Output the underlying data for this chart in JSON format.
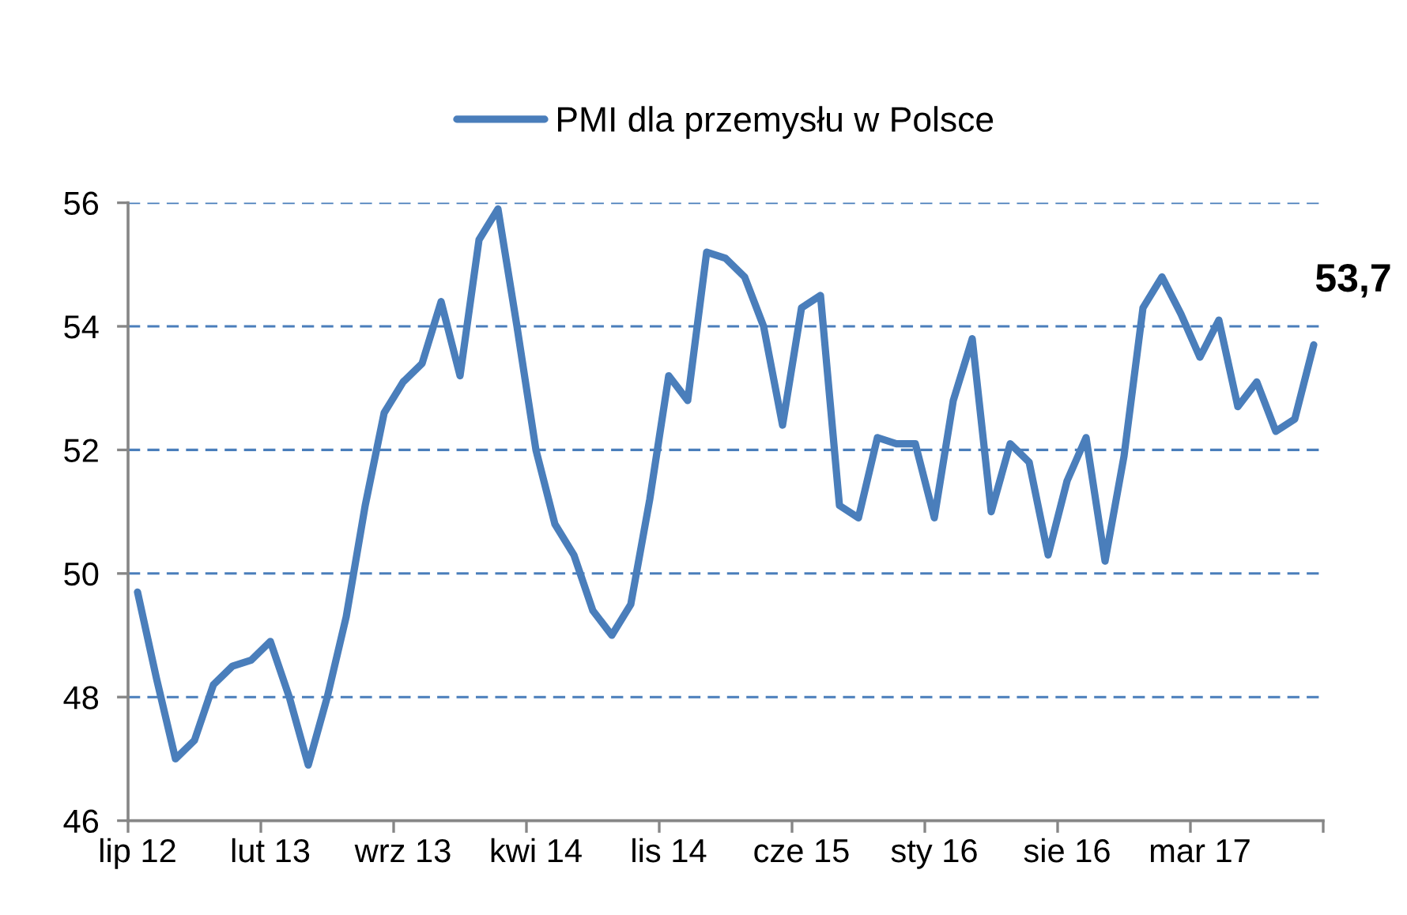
{
  "chart_data": {
    "type": "line",
    "categories": [
      "lip 12",
      null,
      null,
      null,
      null,
      null,
      null,
      "lut 13",
      null,
      null,
      null,
      null,
      null,
      null,
      "wrz 13",
      null,
      null,
      null,
      null,
      null,
      null,
      "kwi 14",
      null,
      null,
      null,
      null,
      null,
      null,
      "lis 14",
      null,
      null,
      null,
      null,
      null,
      null,
      "cze 15",
      null,
      null,
      null,
      null,
      null,
      null,
      "sty 16",
      null,
      null,
      null,
      null,
      null,
      null,
      "sie 16",
      null,
      null,
      null,
      null,
      null,
      null,
      "mar 17",
      null,
      null,
      null,
      null,
      null,
      null
    ],
    "series": [
      {
        "name": "PMI dla przemysłu w Polsce",
        "color": "#4a7ebb",
        "values": [
          49.7,
          48.3,
          47.0,
          47.3,
          48.2,
          48.5,
          48.6,
          48.9,
          48.0,
          46.9,
          48.0,
          49.3,
          51.1,
          52.6,
          53.1,
          53.4,
          54.4,
          53.2,
          55.4,
          55.9,
          54.0,
          52.0,
          50.8,
          50.3,
          49.4,
          49.0,
          49.5,
          51.2,
          53.2,
          52.8,
          55.2,
          55.1,
          54.8,
          54.0,
          52.4,
          54.3,
          54.5,
          51.1,
          50.9,
          52.2,
          52.1,
          52.1,
          50.9,
          52.8,
          53.8,
          51.0,
          52.1,
          51.8,
          50.3,
          51.5,
          52.2,
          50.2,
          51.9,
          54.3,
          54.8,
          54.2,
          53.5,
          54.1,
          52.7,
          53.1,
          52.3,
          52.5,
          53.7
        ],
        "value_labels": [
          null,
          null,
          null,
          null,
          null,
          null,
          null,
          null,
          null,
          null,
          null,
          null,
          null,
          null,
          null,
          null,
          null,
          null,
          null,
          null,
          null,
          null,
          null,
          null,
          null,
          null,
          null,
          null,
          null,
          null,
          null,
          null,
          null,
          null,
          null,
          null,
          null,
          null,
          null,
          null,
          null,
          null,
          null,
          null,
          null,
          null,
          null,
          null,
          null,
          null,
          null,
          null,
          null,
          null,
          null,
          null,
          null,
          null,
          null,
          null,
          null,
          null,
          "53,7"
        ]
      }
    ],
    "ylim": [
      46,
      56
    ],
    "yticks": [
      46,
      48,
      50,
      52,
      54,
      56
    ],
    "grid": "y",
    "legend": "top",
    "line_style": "solid"
  }
}
